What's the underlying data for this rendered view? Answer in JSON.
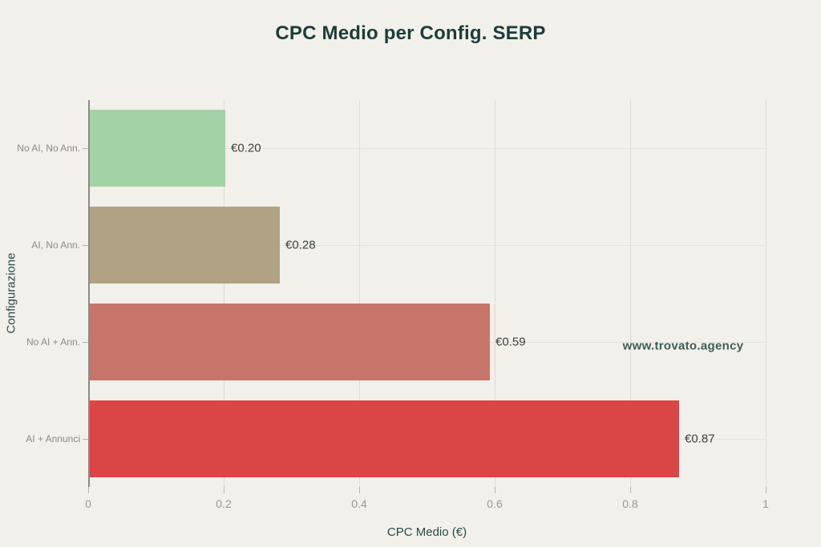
{
  "title": "CPC Medio per Config. SERP",
  "watermark": "www.trovato.agency",
  "chart_data": {
    "type": "bar",
    "orientation": "horizontal",
    "title": "CPC Medio per Config. SERP",
    "xlabel": "CPC Medio (€)",
    "ylabel": "Configurazione",
    "categories": [
      "No AI, No Ann.",
      "AI, No Ann.",
      "No AI + Ann.",
      "AI + Annunci"
    ],
    "values": [
      0.2,
      0.28,
      0.59,
      0.87
    ],
    "value_labels": [
      "€0.20",
      "€0.28",
      "€0.59",
      "€0.87"
    ],
    "bar_colors": [
      "#a3d2a6",
      "#b2a284",
      "#c7756a",
      "#da4545"
    ],
    "xlim": [
      0,
      1
    ],
    "xticks": [
      0,
      0.2,
      0.4,
      0.6,
      0.8,
      1
    ],
    "xtick_labels": [
      "0",
      "0.2",
      "0.4",
      "0.6",
      "0.8",
      "1"
    ],
    "grid": true,
    "legend": false
  },
  "colors": {
    "background": "#f1f0ea",
    "title_text": "#1d3c3a",
    "axis_title_text": "#2a4a47",
    "tick_label_text": "#98978f",
    "category_label_text": "#8b8b86",
    "value_label_text": "#3a403f",
    "axis_line": "#8a8a84",
    "gridline": "#deddd4",
    "watermark_text": "#3e5d59"
  }
}
